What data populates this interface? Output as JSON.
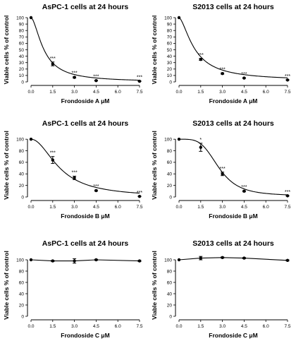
{
  "figure": {
    "background": "#ffffff",
    "line_color": "#000000"
  },
  "chart_data": [
    {
      "type": "line",
      "title": "AsPC-1 cells at 24 hours",
      "xlabel": "Frondoside A μM",
      "ylabel": "Viable cells % of control",
      "x": [
        0.0,
        1.5,
        3.0,
        4.5,
        7.5
      ],
      "xticks": [
        "0.0",
        "1.5",
        "3.0",
        "4.5",
        "6.0",
        "7.5"
      ],
      "yticks": [
        "0",
        "10",
        "20",
        "30",
        "40",
        "50",
        "60",
        "70",
        "80",
        "90",
        "100"
      ],
      "xlim": [
        0,
        7.5
      ],
      "ylim": [
        0,
        100
      ],
      "values": [
        100,
        28,
        7,
        2,
        1
      ],
      "errors": [
        0,
        3,
        1,
        0.5,
        0.5
      ],
      "annotations": [
        "",
        "***",
        "***",
        "***",
        "***"
      ],
      "curve": {
        "top": 100,
        "bottom": 0,
        "ic50": 0.9,
        "hill": 1.7
      }
    },
    {
      "type": "line",
      "title": "S2013 cells at 24 hours",
      "xlabel": "Frondoside A μM",
      "ylabel": "Viable cells % of control",
      "x": [
        0.0,
        1.5,
        3.0,
        4.5,
        7.5
      ],
      "xticks": [
        "0.0",
        "1.5",
        "3.0",
        "4.5",
        "6.0",
        "7.5"
      ],
      "yticks": [
        "0",
        "10",
        "20",
        "30",
        "40",
        "50",
        "60",
        "70",
        "80",
        "90",
        "100"
      ],
      "xlim": [
        0,
        7.5
      ],
      "ylim": [
        0,
        100
      ],
      "values": [
        100,
        35,
        13,
        6,
        3
      ],
      "errors": [
        0,
        1.5,
        1,
        0.5,
        0.5
      ],
      "annotations": [
        "",
        "***",
        "***",
        "***",
        "***"
      ],
      "curve": {
        "top": 100,
        "bottom": 2,
        "ic50": 1.1,
        "hill": 1.6
      }
    },
    {
      "type": "line",
      "title": "AsPC-1 cells at 24 hours",
      "xlabel": "Frondoside B μM",
      "ylabel": "Viable cells % of control",
      "x": [
        0.0,
        1.5,
        3.0,
        4.5,
        7.5
      ],
      "xticks": [
        "0.0",
        "1.5",
        "3.0",
        "4.5",
        "6.0",
        "7.5"
      ],
      "yticks": [
        "0",
        "20",
        "40",
        "60",
        "80",
        "100"
      ],
      "xlim": [
        0,
        7.5
      ],
      "ylim": [
        0,
        110
      ],
      "values": [
        100,
        64,
        33,
        11,
        1
      ],
      "errors": [
        0,
        6,
        3,
        1,
        0.5
      ],
      "annotations": [
        "",
        "***",
        "***",
        "***",
        "***"
      ],
      "curve": {
        "top": 100,
        "bottom": 0,
        "ic50": 2.0,
        "hill": 2.0
      }
    },
    {
      "type": "line",
      "title": "S2013 cells at 24 hours",
      "xlabel": "Frondoside B μM",
      "ylabel": "Viable cells % of control",
      "x": [
        0.0,
        1.5,
        3.0,
        4.5,
        7.5
      ],
      "xticks": [
        "0.0",
        "1.5",
        "3.0",
        "4.5",
        "6.0",
        "7.5"
      ],
      "yticks": [
        "0",
        "20",
        "40",
        "60",
        "80",
        "100"
      ],
      "xlim": [
        0,
        7.5
      ],
      "ylim": [
        0,
        110
      ],
      "values": [
        100,
        86,
        40,
        10,
        2
      ],
      "errors": [
        0,
        7,
        3,
        1,
        0.5
      ],
      "annotations": [
        "",
        "*",
        "***",
        "***",
        "***"
      ],
      "curve": {
        "top": 100,
        "bottom": 2,
        "ic50": 2.75,
        "hill": 4.0
      }
    },
    {
      "type": "line",
      "title": "AsPC-1 cells at 24 hours",
      "xlabel": "Frondoside C μM",
      "ylabel": "Viable cells % of control",
      "x": [
        0.0,
        1.5,
        3.0,
        4.5,
        7.5
      ],
      "xticks": [
        "0.0",
        "1.5",
        "3.0",
        "4.5",
        "6.0",
        "7.5"
      ],
      "yticks": [
        "0",
        "20",
        "40",
        "60",
        "80",
        "100"
      ],
      "xlim": [
        0,
        7.5
      ],
      "ylim": [
        0,
        110
      ],
      "values": [
        100,
        98,
        98,
        100,
        98
      ],
      "errors": [
        0,
        1,
        4,
        1,
        1
      ],
      "annotations": [
        "",
        "",
        "",
        "",
        ""
      ]
    },
    {
      "type": "line",
      "title": "S2013 cells at 24 hours",
      "xlabel": "Frondoside C μM",
      "ylabel": "Viable cells % of control",
      "x": [
        0.0,
        1.5,
        3.0,
        4.5,
        7.5
      ],
      "xticks": [
        "0.0",
        "1.5",
        "3.0",
        "4.5",
        "6.0",
        "7.5"
      ],
      "yticks": [
        "0",
        "20",
        "40",
        "60",
        "80",
        "100"
      ],
      "xlim": [
        0,
        7.5
      ],
      "ylim": [
        0,
        110
      ],
      "values": [
        100,
        103,
        104,
        103,
        99
      ],
      "errors": [
        0,
        3,
        1,
        1,
        1
      ],
      "annotations": [
        "",
        "",
        "",
        "",
        ""
      ]
    }
  ]
}
